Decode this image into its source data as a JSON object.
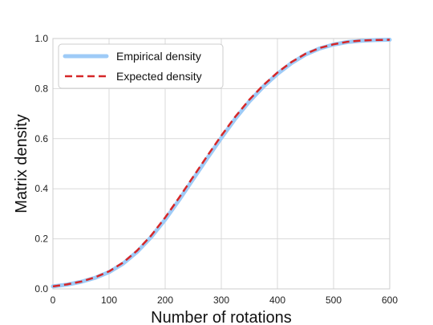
{
  "chart_data": {
    "type": "line",
    "xlabel": "Number of rotations",
    "ylabel": "Matrix density",
    "xlim": [
      0,
      600
    ],
    "ylim": [
      0,
      1
    ],
    "xticks": [
      "0",
      "100",
      "200",
      "300",
      "400",
      "500",
      "600"
    ],
    "yticks": [
      "0.0",
      "0.2",
      "0.4",
      "0.6",
      "0.8",
      "1.0"
    ],
    "grid": true,
    "legend_position": "top-left",
    "x": [
      0,
      25,
      50,
      75,
      100,
      125,
      150,
      175,
      200,
      225,
      250,
      275,
      300,
      325,
      350,
      375,
      400,
      425,
      450,
      475,
      500,
      525,
      550,
      575,
      600
    ],
    "series": [
      {
        "name": "Empirical density",
        "color": "#9ecbf7",
        "style": "solid",
        "values": [
          0.01,
          0.017,
          0.028,
          0.044,
          0.067,
          0.101,
          0.148,
          0.207,
          0.277,
          0.356,
          0.439,
          0.522,
          0.603,
          0.68,
          0.749,
          0.808,
          0.859,
          0.902,
          0.936,
          0.96,
          0.976,
          0.986,
          0.991,
          0.994,
          0.995
        ]
      },
      {
        "name": "Expected density",
        "color": "#d62728",
        "style": "dashed",
        "values": [
          0.01,
          0.018,
          0.029,
          0.046,
          0.07,
          0.105,
          0.153,
          0.213,
          0.285,
          0.365,
          0.448,
          0.531,
          0.612,
          0.688,
          0.756,
          0.814,
          0.864,
          0.906,
          0.939,
          0.962,
          0.977,
          0.987,
          0.992,
          0.994,
          0.995
        ]
      }
    ]
  }
}
